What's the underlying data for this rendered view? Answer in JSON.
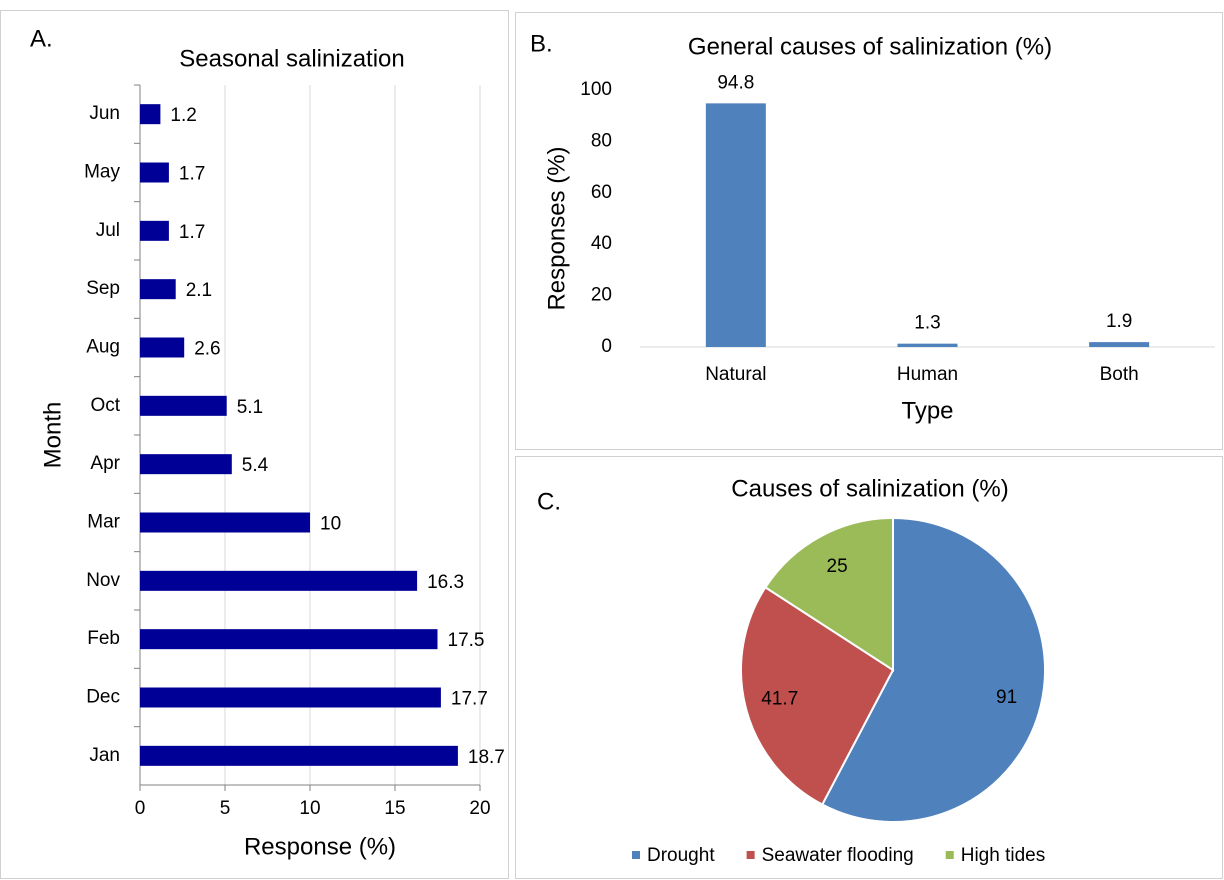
{
  "chart_data": [
    {
      "type": "hbar",
      "label": "A.",
      "title": "Seasonal salinization",
      "xlabel": "Response (%)",
      "ylabel": "Month",
      "categories": [
        "Jun",
        "May",
        "Jul",
        "Sep",
        "Aug",
        "Oct",
        "Apr",
        "Mar",
        "Nov",
        "Feb",
        "Dec",
        "Jan"
      ],
      "values": [
        1.2,
        1.7,
        1.7,
        2.1,
        2.6,
        5.1,
        5.4,
        10,
        16.3,
        17.5,
        17.7,
        18.7
      ],
      "color": "#000096",
      "xlim": [
        0,
        20
      ],
      "xticks": [
        0,
        5,
        10,
        15,
        20
      ],
      "grid": true
    },
    {
      "type": "bar",
      "label": "B.",
      "title": "General causes of salinization (%)",
      "xlabel": "Type",
      "ylabel": "Responses (%)",
      "categories": [
        "Natural",
        "Human",
        "Both"
      ],
      "values": [
        94.8,
        1.3,
        1.9
      ],
      "color": "#4f81bd",
      "ylim": [
        0,
        100
      ],
      "yticks": [
        0,
        20,
        40,
        60,
        80,
        100
      ],
      "grid": false
    },
    {
      "type": "pie",
      "label": "C.",
      "title": "Causes of salinization (%)",
      "categories": [
        "Drought",
        "Seawater flooding",
        "High tides"
      ],
      "values": [
        91,
        41.7,
        25
      ],
      "colors": [
        "#4f81bd",
        "#c0504d",
        "#9bbb59"
      ],
      "legend": "bottom"
    }
  ]
}
